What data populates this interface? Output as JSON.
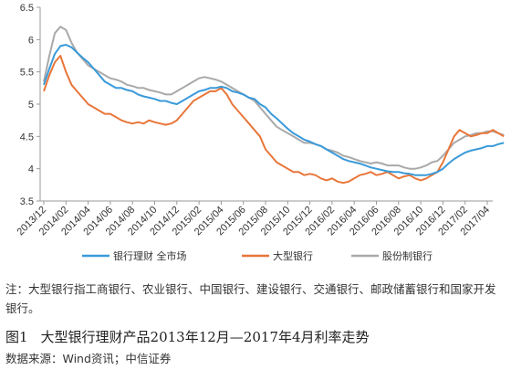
{
  "chart_data": {
    "type": "line",
    "ylim": [
      3.5,
      6.5
    ],
    "yticks": [
      "3.5",
      "4",
      "4.5",
      "5",
      "5.5",
      "6",
      "6.5"
    ],
    "xticks": [
      "2013/12",
      "2014/02",
      "2014/04",
      "2014/06",
      "2014/08",
      "2014/10",
      "2014/12",
      "2015/02",
      "2015/04",
      "2015/06",
      "2015/08",
      "2015/10",
      "2015/12",
      "2016/02",
      "2016/04",
      "2016/06",
      "2016/08",
      "2016/10",
      "2016/12",
      "2017/02",
      "2017/04"
    ],
    "legend_position": "bottom",
    "grid": false,
    "series": [
      {
        "name": "银行理财 全市场",
        "color": "#3a9ad9",
        "points": [
          [
            0,
            5.3
          ],
          [
            0.25,
            5.55
          ],
          [
            0.5,
            5.78
          ],
          [
            0.75,
            5.9
          ],
          [
            1,
            5.92
          ],
          [
            1.25,
            5.88
          ],
          [
            1.5,
            5.8
          ],
          [
            1.75,
            5.72
          ],
          [
            2,
            5.65
          ],
          [
            2.25,
            5.55
          ],
          [
            2.5,
            5.45
          ],
          [
            2.75,
            5.35
          ],
          [
            3,
            5.3
          ],
          [
            3.25,
            5.25
          ],
          [
            3.5,
            5.25
          ],
          [
            3.75,
            5.22
          ],
          [
            4,
            5.2
          ],
          [
            4.25,
            5.15
          ],
          [
            4.5,
            5.12
          ],
          [
            4.75,
            5.1
          ],
          [
            5,
            5.08
          ],
          [
            5.25,
            5.05
          ],
          [
            5.5,
            5.05
          ],
          [
            5.75,
            5.02
          ],
          [
            6,
            5.0
          ],
          [
            6.25,
            5.05
          ],
          [
            6.5,
            5.1
          ],
          [
            6.75,
            5.15
          ],
          [
            7,
            5.2
          ],
          [
            7.25,
            5.22
          ],
          [
            7.5,
            5.25
          ],
          [
            7.75,
            5.25
          ],
          [
            8,
            5.27
          ],
          [
            8.25,
            5.25
          ],
          [
            8.5,
            5.2
          ],
          [
            8.75,
            5.18
          ],
          [
            9,
            5.15
          ],
          [
            9.25,
            5.1
          ],
          [
            9.5,
            5.08
          ],
          [
            9.75,
            5.0
          ],
          [
            10,
            4.95
          ],
          [
            10.25,
            4.85
          ],
          [
            10.5,
            4.78
          ],
          [
            10.75,
            4.7
          ],
          [
            11,
            4.62
          ],
          [
            11.25,
            4.55
          ],
          [
            11.5,
            4.5
          ],
          [
            11.75,
            4.45
          ],
          [
            12,
            4.42
          ],
          [
            12.25,
            4.38
          ],
          [
            12.5,
            4.35
          ],
          [
            12.75,
            4.3
          ],
          [
            13,
            4.25
          ],
          [
            13.25,
            4.2
          ],
          [
            13.5,
            4.15
          ],
          [
            13.75,
            4.12
          ],
          [
            14,
            4.1
          ],
          [
            14.25,
            4.08
          ],
          [
            14.5,
            4.05
          ],
          [
            14.75,
            4.02
          ],
          [
            15,
            4.0
          ],
          [
            15.25,
            3.98
          ],
          [
            15.5,
            3.96
          ],
          [
            15.75,
            3.95
          ],
          [
            16,
            3.95
          ],
          [
            16.25,
            3.93
          ],
          [
            16.5,
            3.92
          ],
          [
            16.75,
            3.9
          ],
          [
            17,
            3.9
          ],
          [
            17.25,
            3.9
          ],
          [
            17.5,
            3.92
          ],
          [
            17.75,
            3.95
          ],
          [
            18,
            4.0
          ],
          [
            18.25,
            4.08
          ],
          [
            18.5,
            4.15
          ],
          [
            18.75,
            4.2
          ],
          [
            19,
            4.25
          ],
          [
            19.25,
            4.28
          ],
          [
            19.5,
            4.3
          ],
          [
            19.75,
            4.32
          ],
          [
            20,
            4.35
          ],
          [
            20.25,
            4.35
          ],
          [
            20.5,
            4.38
          ],
          [
            20.75,
            4.4
          ]
        ]
      },
      {
        "name": "大型银行",
        "color": "#e8763a",
        "points": [
          [
            0,
            5.2
          ],
          [
            0.25,
            5.45
          ],
          [
            0.5,
            5.65
          ],
          [
            0.75,
            5.75
          ],
          [
            1,
            5.5
          ],
          [
            1.25,
            5.3
          ],
          [
            1.5,
            5.2
          ],
          [
            1.75,
            5.1
          ],
          [
            2,
            5.0
          ],
          [
            2.25,
            4.95
          ],
          [
            2.5,
            4.9
          ],
          [
            2.75,
            4.85
          ],
          [
            3,
            4.85
          ],
          [
            3.25,
            4.8
          ],
          [
            3.5,
            4.75
          ],
          [
            3.75,
            4.72
          ],
          [
            4,
            4.7
          ],
          [
            4.25,
            4.72
          ],
          [
            4.5,
            4.7
          ],
          [
            4.75,
            4.75
          ],
          [
            5,
            4.72
          ],
          [
            5.25,
            4.7
          ],
          [
            5.5,
            4.68
          ],
          [
            5.75,
            4.7
          ],
          [
            6,
            4.75
          ],
          [
            6.25,
            4.85
          ],
          [
            6.5,
            4.95
          ],
          [
            6.75,
            5.05
          ],
          [
            7,
            5.1
          ],
          [
            7.25,
            5.15
          ],
          [
            7.5,
            5.2
          ],
          [
            7.75,
            5.2
          ],
          [
            8,
            5.25
          ],
          [
            8.25,
            5.15
          ],
          [
            8.5,
            5.0
          ],
          [
            8.75,
            4.9
          ],
          [
            9,
            4.8
          ],
          [
            9.25,
            4.7
          ],
          [
            9.5,
            4.6
          ],
          [
            9.75,
            4.5
          ],
          [
            10,
            4.3
          ],
          [
            10.25,
            4.2
          ],
          [
            10.5,
            4.1
          ],
          [
            10.75,
            4.05
          ],
          [
            11,
            4.0
          ],
          [
            11.25,
            3.95
          ],
          [
            11.5,
            3.95
          ],
          [
            11.75,
            3.9
          ],
          [
            12,
            3.92
          ],
          [
            12.25,
            3.9
          ],
          [
            12.5,
            3.85
          ],
          [
            12.75,
            3.82
          ],
          [
            13,
            3.85
          ],
          [
            13.25,
            3.8
          ],
          [
            13.5,
            3.78
          ],
          [
            13.75,
            3.8
          ],
          [
            14,
            3.85
          ],
          [
            14.25,
            3.9
          ],
          [
            14.5,
            3.92
          ],
          [
            14.75,
            3.95
          ],
          [
            15,
            3.9
          ],
          [
            15.25,
            3.92
          ],
          [
            15.5,
            3.95
          ],
          [
            15.75,
            3.9
          ],
          [
            16,
            3.85
          ],
          [
            16.25,
            3.88
          ],
          [
            16.5,
            3.9
          ],
          [
            16.75,
            3.85
          ],
          [
            17,
            3.82
          ],
          [
            17.25,
            3.85
          ],
          [
            17.5,
            3.9
          ],
          [
            17.75,
            3.95
          ],
          [
            18,
            4.1
          ],
          [
            18.25,
            4.3
          ],
          [
            18.5,
            4.5
          ],
          [
            18.75,
            4.6
          ],
          [
            19,
            4.55
          ],
          [
            19.25,
            4.5
          ],
          [
            19.5,
            4.52
          ],
          [
            19.75,
            4.55
          ],
          [
            20,
            4.55
          ],
          [
            20.25,
            4.6
          ],
          [
            20.5,
            4.55
          ],
          [
            20.75,
            4.5
          ]
        ]
      },
      {
        "name": "股份制银行",
        "color": "#a9a9a9",
        "points": [
          [
            0,
            5.35
          ],
          [
            0.25,
            5.75
          ],
          [
            0.5,
            6.1
          ],
          [
            0.75,
            6.2
          ],
          [
            1,
            6.15
          ],
          [
            1.25,
            5.95
          ],
          [
            1.5,
            5.8
          ],
          [
            1.75,
            5.7
          ],
          [
            2,
            5.6
          ],
          [
            2.25,
            5.55
          ],
          [
            2.5,
            5.5
          ],
          [
            2.75,
            5.45
          ],
          [
            3,
            5.4
          ],
          [
            3.25,
            5.38
          ],
          [
            3.5,
            5.35
          ],
          [
            3.75,
            5.3
          ],
          [
            4,
            5.28
          ],
          [
            4.25,
            5.25
          ],
          [
            4.5,
            5.25
          ],
          [
            4.75,
            5.22
          ],
          [
            5,
            5.2
          ],
          [
            5.25,
            5.18
          ],
          [
            5.5,
            5.15
          ],
          [
            5.75,
            5.15
          ],
          [
            6,
            5.2
          ],
          [
            6.25,
            5.25
          ],
          [
            6.5,
            5.3
          ],
          [
            6.75,
            5.35
          ],
          [
            7,
            5.4
          ],
          [
            7.25,
            5.42
          ],
          [
            7.5,
            5.4
          ],
          [
            7.75,
            5.38
          ],
          [
            8,
            5.35
          ],
          [
            8.25,
            5.3
          ],
          [
            8.5,
            5.25
          ],
          [
            8.75,
            5.2
          ],
          [
            9,
            5.15
          ],
          [
            9.25,
            5.1
          ],
          [
            9.5,
            5.05
          ],
          [
            9.75,
            4.95
          ],
          [
            10,
            4.85
          ],
          [
            10.25,
            4.75
          ],
          [
            10.5,
            4.65
          ],
          [
            10.75,
            4.6
          ],
          [
            11,
            4.55
          ],
          [
            11.25,
            4.5
          ],
          [
            11.5,
            4.45
          ],
          [
            11.75,
            4.4
          ],
          [
            12,
            4.4
          ],
          [
            12.25,
            4.38
          ],
          [
            12.5,
            4.35
          ],
          [
            12.75,
            4.3
          ],
          [
            13,
            4.28
          ],
          [
            13.25,
            4.25
          ],
          [
            13.5,
            4.2
          ],
          [
            13.75,
            4.18
          ],
          [
            14,
            4.15
          ],
          [
            14.25,
            4.12
          ],
          [
            14.5,
            4.1
          ],
          [
            14.75,
            4.08
          ],
          [
            15,
            4.1
          ],
          [
            15.25,
            4.08
          ],
          [
            15.5,
            4.05
          ],
          [
            15.75,
            4.05
          ],
          [
            16,
            4.05
          ],
          [
            16.25,
            4.02
          ],
          [
            16.5,
            4.0
          ],
          [
            16.75,
            4.0
          ],
          [
            17,
            4.02
          ],
          [
            17.25,
            4.05
          ],
          [
            17.5,
            4.1
          ],
          [
            17.75,
            4.12
          ],
          [
            18,
            4.2
          ],
          [
            18.25,
            4.3
          ],
          [
            18.5,
            4.4
          ],
          [
            18.75,
            4.45
          ],
          [
            19,
            4.5
          ],
          [
            19.25,
            4.52
          ],
          [
            19.5,
            4.55
          ],
          [
            19.75,
            4.55
          ],
          [
            20,
            4.58
          ],
          [
            20.25,
            4.58
          ],
          [
            20.5,
            4.55
          ],
          [
            20.75,
            4.52
          ]
        ]
      }
    ]
  },
  "note": "注：大型银行指工商银行、农业银行、中国银行、建设银行、交通银行、邮政储蓄银行和国家开发银行。",
  "figure": {
    "number": "图1",
    "title": "大型银行理财产品2013年12月—2017年4月利率走势"
  },
  "source": "数据来源：Wind资讯；中信证券"
}
